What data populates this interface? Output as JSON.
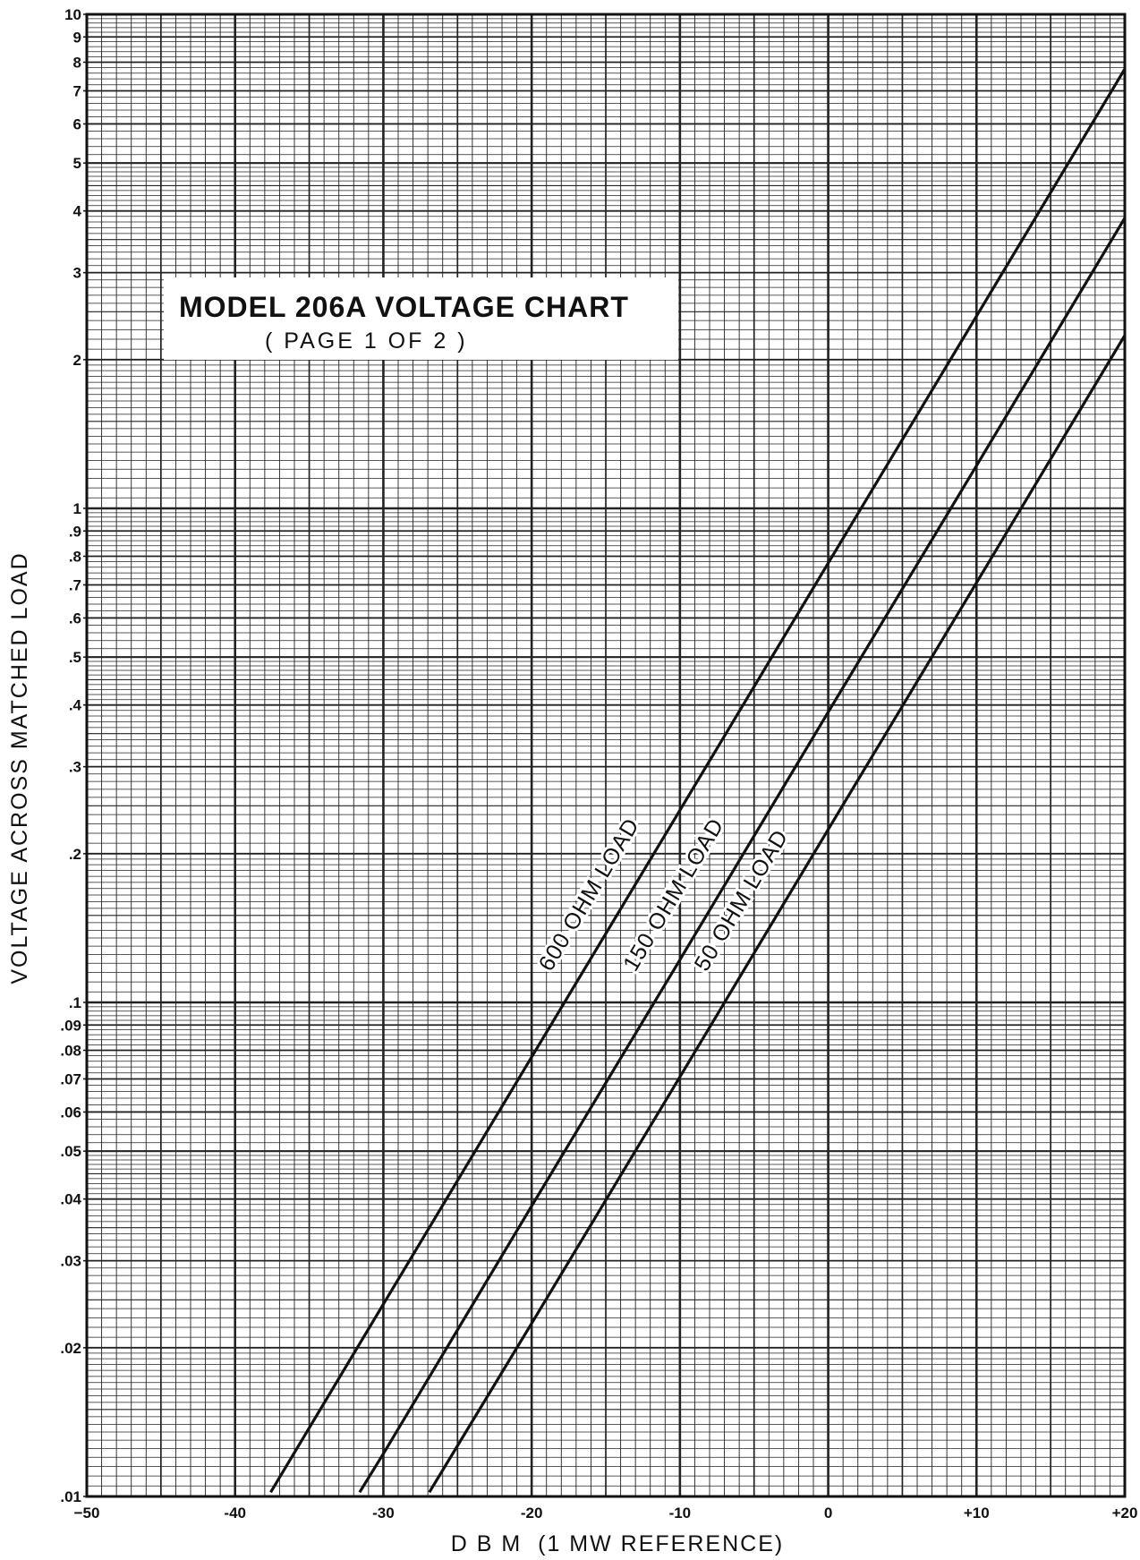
{
  "chart_data": {
    "type": "line",
    "title": "MODEL 206A VOLTAGE CHART",
    "subtitle": "( PAGE 1 OF 2 )",
    "xlabel": "D B M  (1 MW REFERENCE)",
    "ylabel": "VOLTAGE ACROSS MATCHED LOAD",
    "xlim": [
      -50,
      20
    ],
    "ylim": [
      0.01,
      10
    ],
    "yscale": "log",
    "grid": true,
    "x_ticks": [
      {
        "value": -50,
        "label": "−50"
      },
      {
        "value": -40,
        "label": "-40"
      },
      {
        "value": -30,
        "label": "-30"
      },
      {
        "value": -20,
        "label": "-20"
      },
      {
        "value": -10,
        "label": "-10"
      },
      {
        "value": 0,
        "label": "0"
      },
      {
        "value": 10,
        "label": "+10"
      },
      {
        "value": 20,
        "label": "+20"
      }
    ],
    "y_ticks": [
      {
        "value": 0.01,
        "label": ".01"
      },
      {
        "value": 0.02,
        "label": ".02"
      },
      {
        "value": 0.03,
        "label": ".03"
      },
      {
        "value": 0.04,
        "label": ".04"
      },
      {
        "value": 0.05,
        "label": ".05"
      },
      {
        "value": 0.06,
        "label": ".06"
      },
      {
        "value": 0.07,
        "label": ".07"
      },
      {
        "value": 0.08,
        "label": ".08"
      },
      {
        "value": 0.09,
        "label": ".09"
      },
      {
        "value": 0.1,
        "label": ".1"
      },
      {
        "value": 0.2,
        "label": ".2"
      },
      {
        "value": 0.3,
        "label": ".3"
      },
      {
        "value": 0.4,
        "label": ".4"
      },
      {
        "value": 0.5,
        "label": ".5"
      },
      {
        "value": 0.6,
        "label": ".6"
      },
      {
        "value": 0.7,
        "label": ".7"
      },
      {
        "value": 0.8,
        "label": ".8"
      },
      {
        "value": 0.9,
        "label": ".9"
      },
      {
        "value": 1,
        "label": "1"
      },
      {
        "value": 2,
        "label": "2"
      },
      {
        "value": 3,
        "label": "3"
      },
      {
        "value": 4,
        "label": "4"
      },
      {
        "value": 5,
        "label": "5"
      },
      {
        "value": 6,
        "label": "6"
      },
      {
        "value": 7,
        "label": "7"
      },
      {
        "value": 8,
        "label": "8"
      },
      {
        "value": 9,
        "label": "9"
      },
      {
        "value": 10,
        "label": "10"
      }
    ],
    "series": [
      {
        "name": "600 OHM LOAD",
        "ohms": 600,
        "x": [
          -37.6,
          -30,
          -20,
          -10,
          0,
          10,
          20
        ],
        "y": [
          0.0102,
          0.0245,
          0.0775,
          0.245,
          0.775,
          2.45,
          7.75
        ]
      },
      {
        "name": "150 OHM LOAD",
        "ohms": 150,
        "x": [
          -31.6,
          -30,
          -20,
          -10,
          0,
          10,
          20
        ],
        "y": [
          0.0102,
          0.0122,
          0.0387,
          0.122,
          0.387,
          1.22,
          3.87
        ]
      },
      {
        "name": "50 OHM LOAD",
        "ohms": 50,
        "x": [
          -26.9,
          -20,
          -10,
          0,
          10,
          20
        ],
        "y": [
          0.0102,
          0.0224,
          0.0707,
          0.224,
          0.707,
          2.24
        ]
      }
    ],
    "line_color": "#111111",
    "grid_color": "#222222"
  }
}
